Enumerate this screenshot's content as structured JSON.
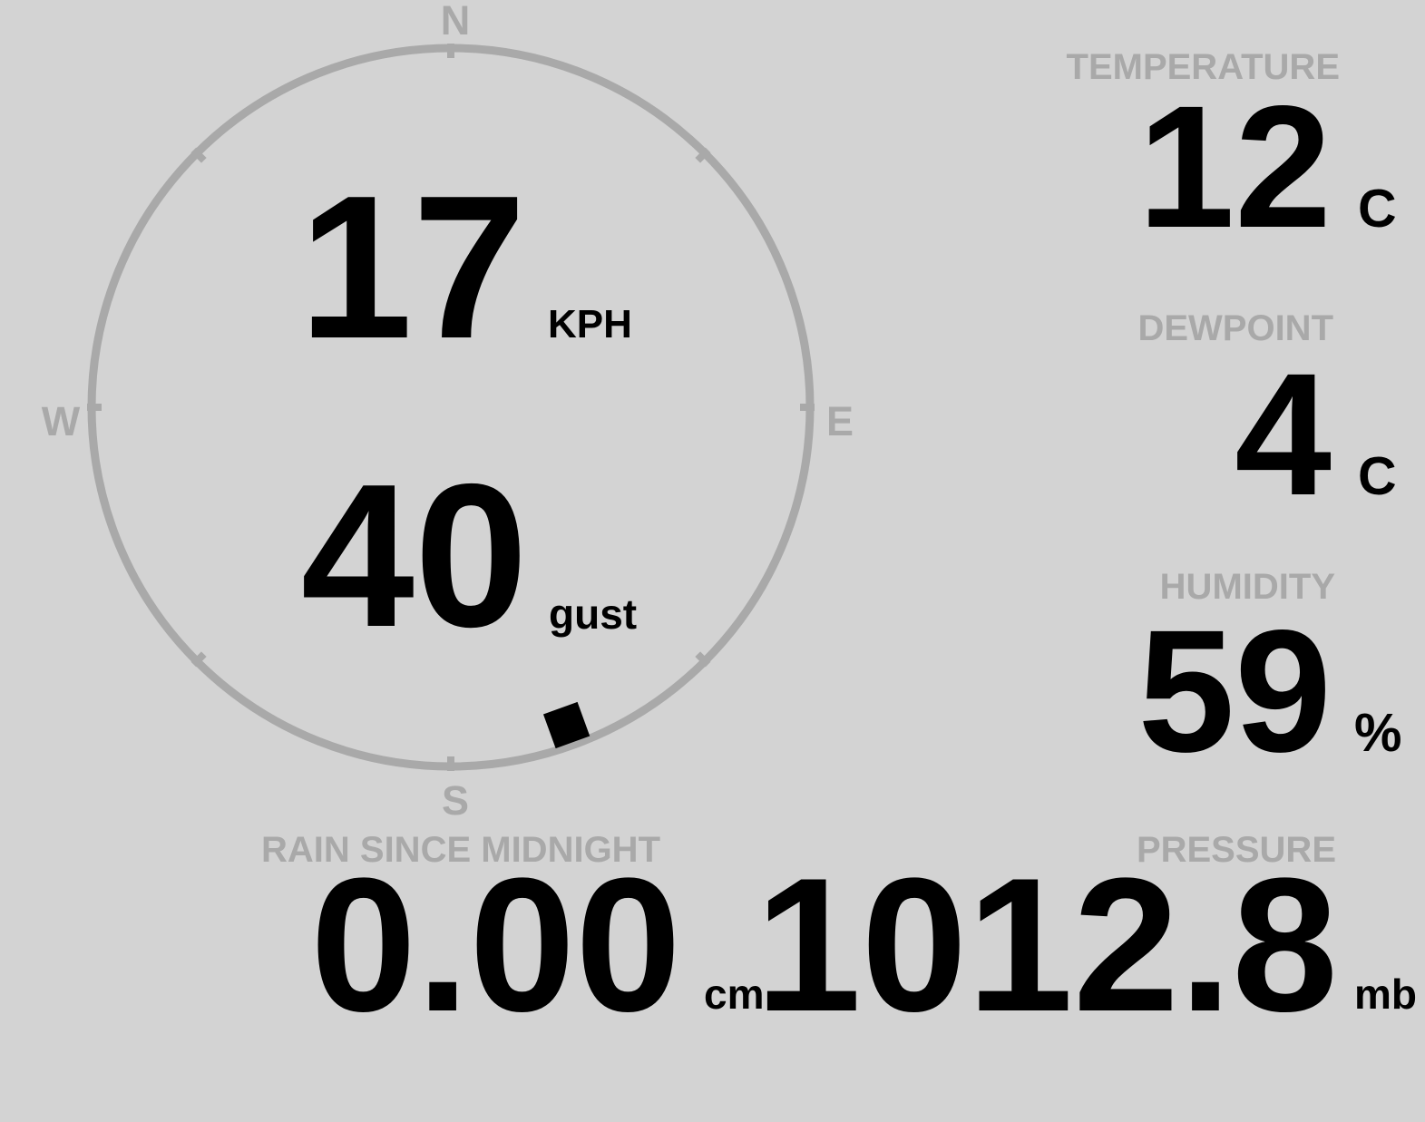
{
  "theme": {
    "background": "#d3d3d3",
    "muted": "#a9a9a9",
    "value": "#000000"
  },
  "wind_gauge": {
    "cardinals": {
      "north": "N",
      "east": "E",
      "south": "S",
      "west": "W"
    },
    "speed_value": "17",
    "speed_unit": "KPH",
    "gust_value": "40",
    "gust_unit": "gust",
    "direction_deg": 160
  },
  "temperature": {
    "label": "TEMPERATURE",
    "value": "12",
    "unit": "C"
  },
  "dewpoint": {
    "label": "DEWPOINT",
    "value": "4",
    "unit": "C"
  },
  "humidity": {
    "label": "HUMIDITY",
    "value": "59",
    "unit": "%"
  },
  "rain": {
    "label": "RAIN SINCE MIDNIGHT",
    "value": "0.00",
    "unit": "cm"
  },
  "pressure": {
    "label": "PRESSURE",
    "value": "1012.8",
    "unit": "mb"
  }
}
